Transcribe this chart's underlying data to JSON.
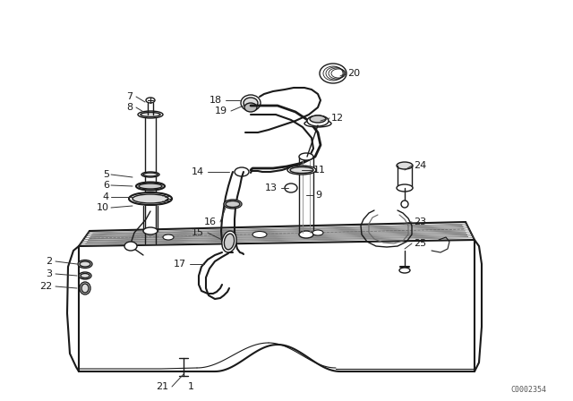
{
  "bg_color": "#ffffff",
  "line_color": "#1a1a1a",
  "label_color": "#1a1a1a",
  "diagram_code": "C0002354",
  "figsize": [
    6.4,
    4.48
  ],
  "dpi": 100
}
